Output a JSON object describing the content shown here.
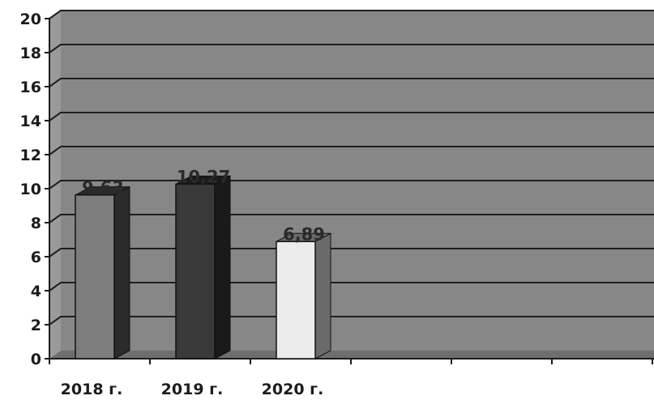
{
  "chart_data": {
    "type": "bar",
    "title": "",
    "xlabel": "",
    "ylabel": "",
    "categories": [
      "2018 г.",
      "2019 г.",
      "2020 г."
    ],
    "values": [
      9.63,
      10.27,
      6.89
    ],
    "value_labels": [
      "9,63",
      "10,27",
      "6,89"
    ],
    "ylim": [
      0,
      20
    ],
    "yticks": [
      "0",
      "2",
      "4",
      "6",
      "8",
      "10",
      "12",
      "14",
      "16",
      "18",
      "20"
    ],
    "grid": true,
    "legend": "none",
    "bar_style": "3d",
    "colors": {
      "plot_background": "#878787",
      "floor": "#6e6e6e",
      "gridline": "#1e1e1e",
      "bars": [
        "#7d7d7d",
        "#3a3a3a",
        "#ececec"
      ],
      "bar_sides": [
        "#2b2b2b",
        "#1a1a1a",
        "#6a6a6a"
      ]
    }
  }
}
